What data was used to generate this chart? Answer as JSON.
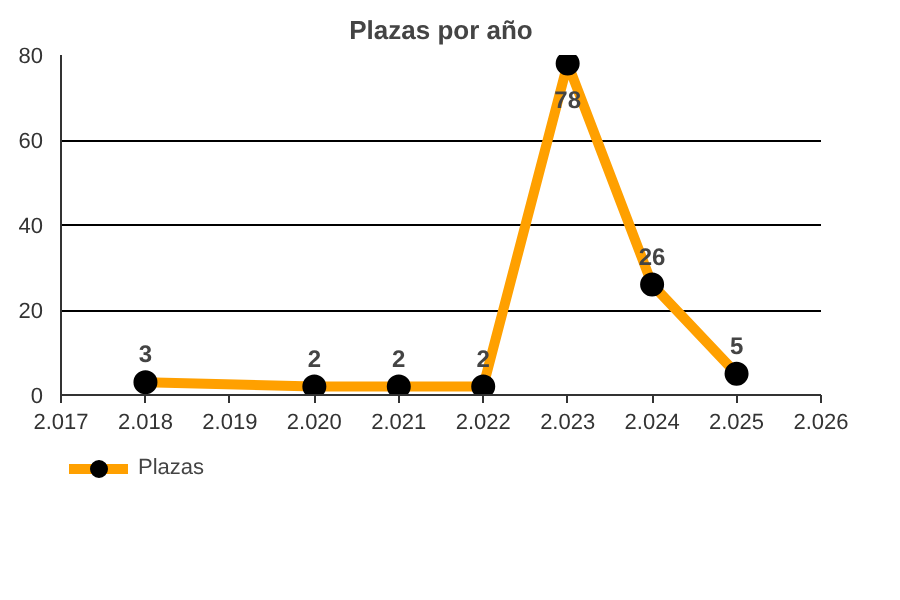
{
  "chart_data": {
    "type": "line",
    "title": "Plazas por año",
    "x": [
      2018,
      2020,
      2021,
      2022,
      2023,
      2024,
      2025
    ],
    "series": [
      {
        "name": "Plazas",
        "color": "#ffa000",
        "values": [
          3,
          2,
          2,
          2,
          78,
          26,
          5
        ]
      }
    ],
    "xlim": [
      2017,
      2026
    ],
    "xticks": [
      {
        "value": 2017,
        "label": "2.017"
      },
      {
        "value": 2018,
        "label": "2.018"
      },
      {
        "value": 2019,
        "label": "2.019"
      },
      {
        "value": 2020,
        "label": "2.020"
      },
      {
        "value": 2021,
        "label": "2.021"
      },
      {
        "value": 2022,
        "label": "2.022"
      },
      {
        "value": 2023,
        "label": "2.023"
      },
      {
        "value": 2024,
        "label": "2.024"
      },
      {
        "value": 2025,
        "label": "2.025"
      },
      {
        "value": 2026,
        "label": "2.026"
      }
    ],
    "ylim": [
      0,
      80
    ],
    "yticks": [
      0,
      20,
      40,
      60,
      80
    ],
    "grid": "y",
    "legend": "bottom left",
    "marker": "circle",
    "line_style": "solid",
    "data_labels": true
  }
}
